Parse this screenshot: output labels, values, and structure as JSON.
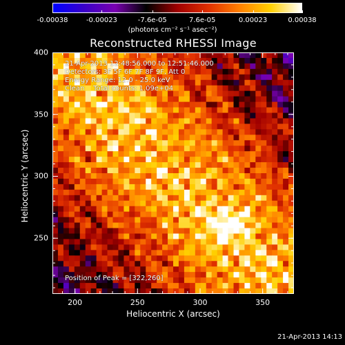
{
  "colorbar": {
    "ticks": [
      "-0.00038",
      "-0.00023",
      "-7.6e-05",
      "7.6e-05",
      "0.00023",
      "0.00038"
    ],
    "tick_values": [
      -0.00038,
      -0.00023,
      -7.6e-05,
      7.6e-05,
      0.00023,
      0.00038
    ],
    "units": "(photons cm⁻² s⁻¹ asec⁻²)",
    "stops": [
      "#0000ff",
      "#3a00c8",
      "#7a00b0",
      "#000000",
      "#a00000",
      "#e03000",
      "#ff8000",
      "#ffd000",
      "#ffffff"
    ]
  },
  "chart_data": {
    "type": "heatmap",
    "title": "Reconstructed RHESSI Image",
    "xlabel": "Heliocentric X (arcsec)",
    "ylabel": "Heliocentric Y (arcsec)",
    "xlim": [
      182,
      375
    ],
    "ylim": [
      205,
      400
    ],
    "xticks": [
      200,
      250,
      300,
      350
    ],
    "yticks": [
      250,
      300,
      350,
      400
    ],
    "annotations": [
      "21-Apr-2013 12:48:56.000 to 12:51:46.000",
      "Detectors: 3F 5F 6F 7F 8F 9F, Att 0",
      "Energy Range: 12.0 - 25.0 keV",
      "Clean    Total counts: 1.09e+04"
    ],
    "peak_label": "Position of Peak = [322,260]",
    "peak": [
      322,
      260
    ],
    "colorbar_range": [
      -0.00038,
      0.00038
    ],
    "grid": false
  },
  "footer": {
    "timestamp": "21-Apr-2013 14:13"
  }
}
